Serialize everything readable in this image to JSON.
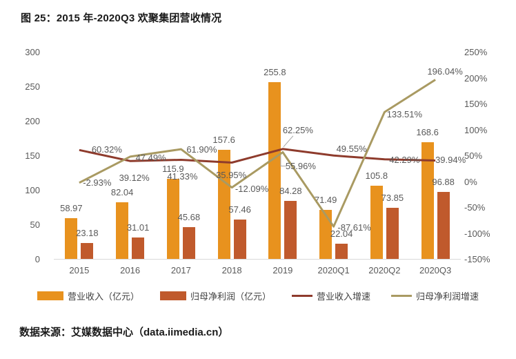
{
  "title": "图 25：2015 年-2020Q3 欢聚集团营收情况",
  "footer": "数据来源：艾媒数据中心（data.iimedia.cn）",
  "colors": {
    "revenue_bar": "#E8921E",
    "profit_bar": "#C05A2C",
    "revenue_growth_line": "#8E3B2C",
    "profit_growth_line": "#A99A62",
    "data_label_text": "#595959",
    "axis_text": "#595959",
    "baseline": "#D9D9D9",
    "leader_line": "#A6A6A6"
  },
  "chart_data": {
    "type": "bar",
    "subtype": "combo bar + line, dual axis",
    "title": "图 25：2015 年-2020Q3 欢聚集团营收情况",
    "categories": [
      "2015",
      "2016",
      "2017",
      "2018",
      "2019",
      "2020Q1",
      "2020Q2",
      "2020Q3"
    ],
    "series": [
      {
        "name": "营业收入（亿元）",
        "type": "bar",
        "axis": "left",
        "color": "#E8921E",
        "values": [
          58.97,
          82.04,
          115.9,
          157.6,
          255.8,
          71.49,
          105.8,
          168.6
        ],
        "labels": [
          "58.97",
          "82.04",
          "115.9",
          "157.6",
          "255.8",
          "71.49",
          "105.8",
          "168.6"
        ]
      },
      {
        "name": "归母净利润（亿元）",
        "type": "bar",
        "axis": "left",
        "color": "#C05A2C",
        "values": [
          23.18,
          31.01,
          45.68,
          57.46,
          84.28,
          22.04,
          73.85,
          96.88
        ],
        "labels": [
          "23.18",
          "31.01",
          "45.68",
          "57.46",
          "84.28",
          "22.04",
          "73.85",
          "96.88"
        ]
      },
      {
        "name": "营业收入增速",
        "type": "line",
        "axis": "right",
        "color": "#8E3B2C",
        "values": [
          60.32,
          39.12,
          41.33,
          35.95,
          62.25,
          49.55,
          42.29,
          39.94
        ],
        "labels": [
          "60.32%",
          "39.12%",
          "41.33%",
          "35.95%",
          "62.25%",
          "49.55%",
          "42.29%",
          "39.94%"
        ]
      },
      {
        "name": "归母净利润增速",
        "type": "line",
        "axis": "right",
        "color": "#A99A62",
        "values": [
          -2.93,
          47.49,
          61.9,
          -12.09,
          55.96,
          -87.61,
          133.51,
          196.04
        ],
        "labels": [
          "-2.93%",
          "47.49%",
          "61.90%",
          "-12.09%",
          "55.96%",
          "-87.61%",
          "133.51%",
          "196.04%"
        ]
      }
    ],
    "left_axis": {
      "min": 0,
      "max": 300,
      "step": 50,
      "ticks": [
        "300",
        "250",
        "200",
        "150",
        "100",
        "50",
        "0"
      ]
    },
    "right_axis": {
      "min": -150,
      "max": 250,
      "step": 50,
      "ticks": [
        "250%",
        "200%",
        "150%",
        "100%",
        "50%",
        "0%",
        "-50%",
        "-100%",
        "-150%"
      ]
    },
    "grid": false,
    "legend_position": "bottom"
  }
}
